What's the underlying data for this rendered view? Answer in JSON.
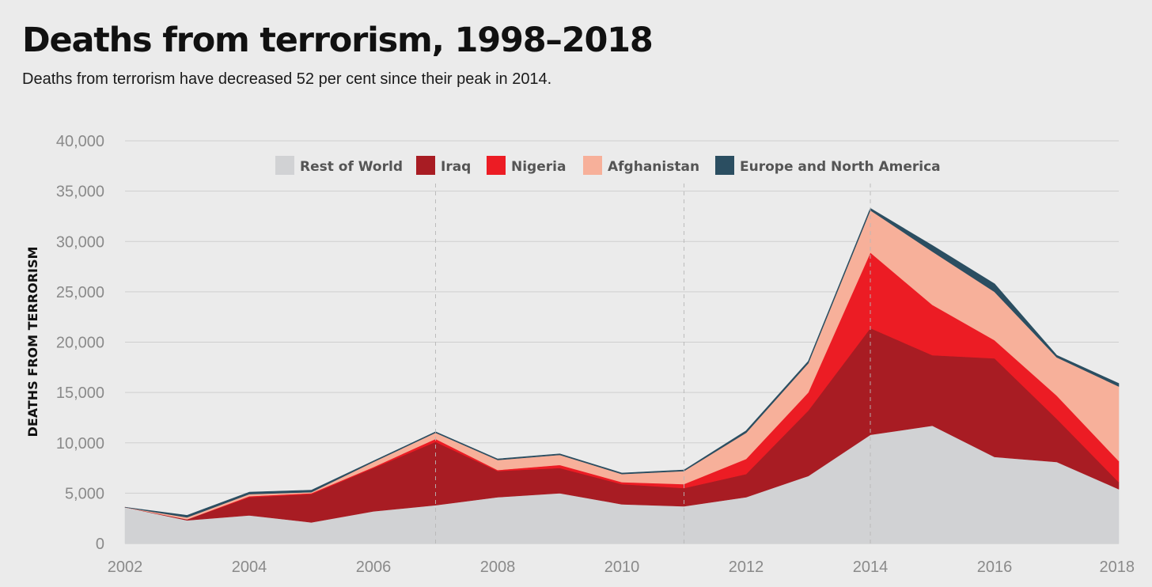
{
  "header": {
    "title": "Deaths from terrorism, 1998–2018",
    "subtitle": "Deaths from terrorism have decreased 52 per cent since their peak in 2014."
  },
  "chart_data": {
    "type": "area",
    "stacked": true,
    "title": "Deaths from terrorism, 1998–2018",
    "subtitle": "Deaths from terrorism have decreased 52 per cent since their peak in 2014.",
    "xlabel": "",
    "ylabel": "DEATHS FROM TERRORISM",
    "x": [
      2002,
      2003,
      2004,
      2005,
      2006,
      2007,
      2008,
      2009,
      2010,
      2011,
      2012,
      2013,
      2014,
      2015,
      2016,
      2017,
      2018
    ],
    "xlim": [
      2002,
      2018
    ],
    "ylim": [
      0,
      40000
    ],
    "x_ticks": [
      2002,
      2004,
      2006,
      2008,
      2010,
      2012,
      2014,
      2016,
      2018
    ],
    "x_tick_labels": [
      "2002",
      "2004",
      "2006",
      "2008",
      "2010",
      "2012",
      "2014",
      "2016",
      "2018"
    ],
    "y_ticks": [
      0,
      5000,
      10000,
      15000,
      20000,
      25000,
      30000,
      35000,
      40000
    ],
    "y_tick_labels": [
      "0",
      "5,000",
      "10,000",
      "15,000",
      "20,000",
      "25,000",
      "30,000",
      "35,000",
      "40,000"
    ],
    "grid": true,
    "legend_position": "top-center",
    "reference_lines_x": [
      2007,
      2011,
      2014
    ],
    "series": [
      {
        "name": "Rest of World",
        "color": "#d1d2d4",
        "values": [
          3600,
          2300,
          2800,
          2100,
          3200,
          3800,
          4600,
          5000,
          3900,
          3700,
          4600,
          6700,
          10800,
          11700,
          8600,
          8100,
          5400
        ]
      },
      {
        "name": "Iraq",
        "color": "#a81c23",
        "values": [
          0,
          100,
          1800,
          2800,
          4300,
          6300,
          2600,
          2500,
          2000,
          1800,
          2300,
          6500,
          10600,
          7000,
          9800,
          4300,
          700
        ]
      },
      {
        "name": "Nigeria",
        "color": "#ec1c24",
        "values": [
          0,
          0,
          100,
          100,
          100,
          300,
          100,
          300,
          200,
          400,
          1500,
          1800,
          7500,
          5000,
          1800,
          2300,
          2100
        ]
      },
      {
        "name": "Afghanistan",
        "color": "#f7b09a",
        "values": [
          0,
          200,
          200,
          100,
          500,
          600,
          1000,
          1000,
          800,
          1300,
          2600,
          2900,
          4200,
          5300,
          4800,
          3800,
          7400
        ]
      },
      {
        "name": "Europe and North America",
        "color": "#2b4e61",
        "values": [
          0,
          200,
          200,
          200,
          100,
          100,
          100,
          100,
          100,
          100,
          200,
          200,
          200,
          600,
          800,
          200,
          300
        ]
      }
    ]
  }
}
